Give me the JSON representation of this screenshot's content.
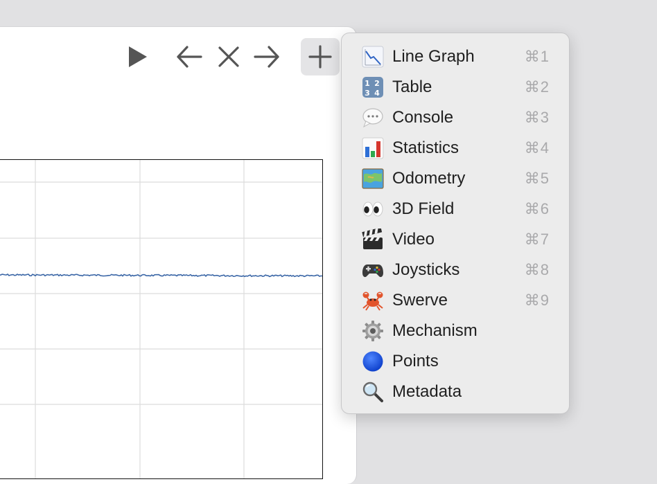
{
  "toolbar": {
    "play_icon": "play-icon",
    "back_icon": "arrow-left-icon",
    "close_icon": "close-icon",
    "forward_icon": "arrow-right-icon",
    "add_icon": "plus-icon"
  },
  "colors": {
    "trace": "#3a66a6",
    "grid": "#dcdcdc",
    "menu_bg": "#ececec"
  },
  "menu": {
    "items": [
      {
        "label": "Line Graph",
        "shortcut": "⌘1",
        "icon": "line-graph-icon"
      },
      {
        "label": "Table",
        "shortcut": "⌘2",
        "icon": "numbers-table-icon"
      },
      {
        "label": "Console",
        "shortcut": "⌘3",
        "icon": "speech-bubble-icon"
      },
      {
        "label": "Statistics",
        "shortcut": "⌘4",
        "icon": "bar-chart-icon"
      },
      {
        "label": "Odometry",
        "shortcut": "⌘5",
        "icon": "map-icon"
      },
      {
        "label": "3D Field",
        "shortcut": "⌘6",
        "icon": "eyes-icon"
      },
      {
        "label": "Video",
        "shortcut": "⌘7",
        "icon": "clapper-board-icon"
      },
      {
        "label": "Joysticks",
        "shortcut": "⌘8",
        "icon": "game-controller-icon"
      },
      {
        "label": "Swerve",
        "shortcut": "⌘9",
        "icon": "crab-icon"
      },
      {
        "label": "Mechanism",
        "shortcut": "",
        "icon": "gear-icon"
      },
      {
        "label": "Points",
        "shortcut": "",
        "icon": "blue-circle-icon"
      },
      {
        "label": "Metadata",
        "shortcut": "",
        "icon": "magnifying-glass-icon"
      }
    ]
  }
}
